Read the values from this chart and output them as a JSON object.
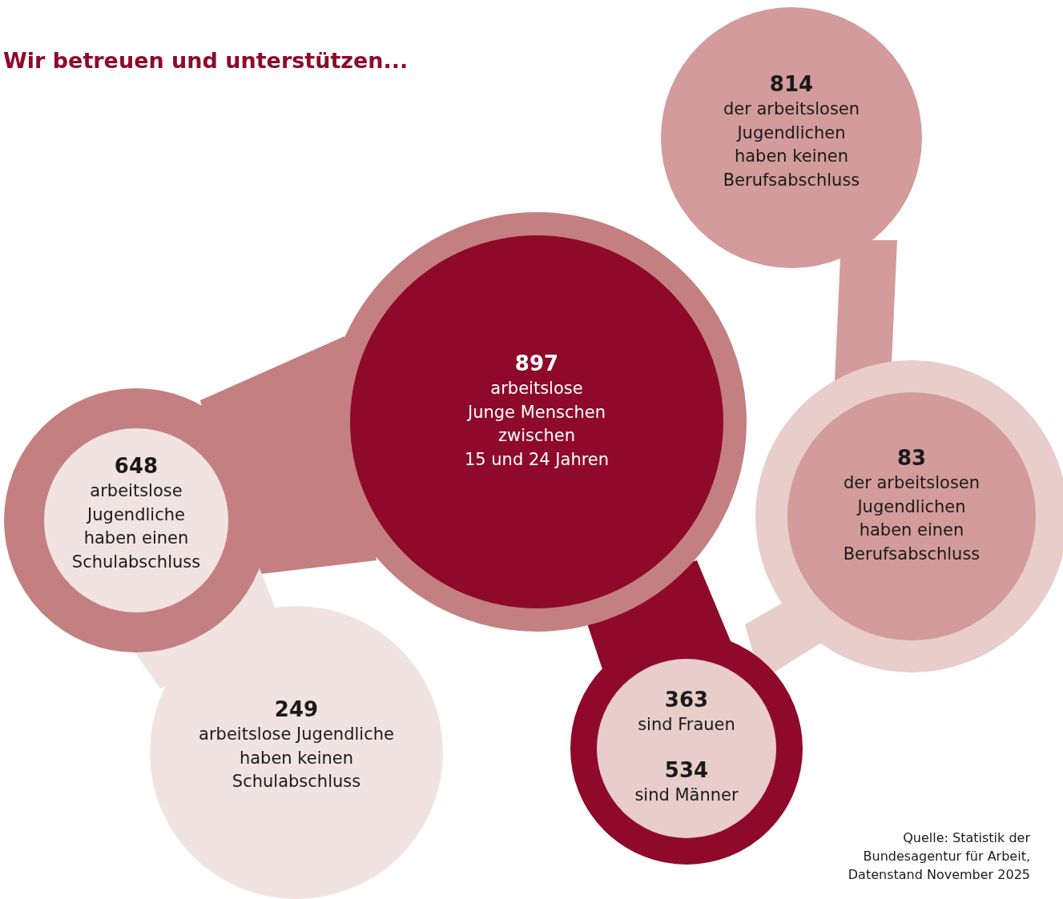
{
  "chart_data": {
    "type": "other",
    "title": "Wir betreuen und unterstützen...",
    "categories": [
      "arbeitslose\nJunge Menschen\nzwischen\n15 und 24 Jahren",
      "arbeitslose\nJugendliche\nhaben einen\nSchulabschluss",
      "arbeitslose Jugendliche\nhaben keinen\nSchulabschluss",
      "der arbeitslosen\nJugendlichen\nhaben keinen\nBerufsabschluss",
      "der arbeitslosen\nJugendlichen\nhaben einen\nBerufsabschluss",
      "sind Frauen",
      "sind Männer"
    ],
    "values": [
      897,
      648,
      249,
      814,
      83,
      363,
      534
    ],
    "data_labels": true,
    "colors": [
      "#8f0a2a",
      "#f2e3e3",
      "#f2e3e3",
      "#d39b9b",
      "#d39b9b",
      "#e8cdcb",
      "#e8cdcb"
    ],
    "annotations": [
      "Quelle: Statistik der\nBundesagentur für Arbeit,\nDatenstand November 2025"
    ]
  }
}
